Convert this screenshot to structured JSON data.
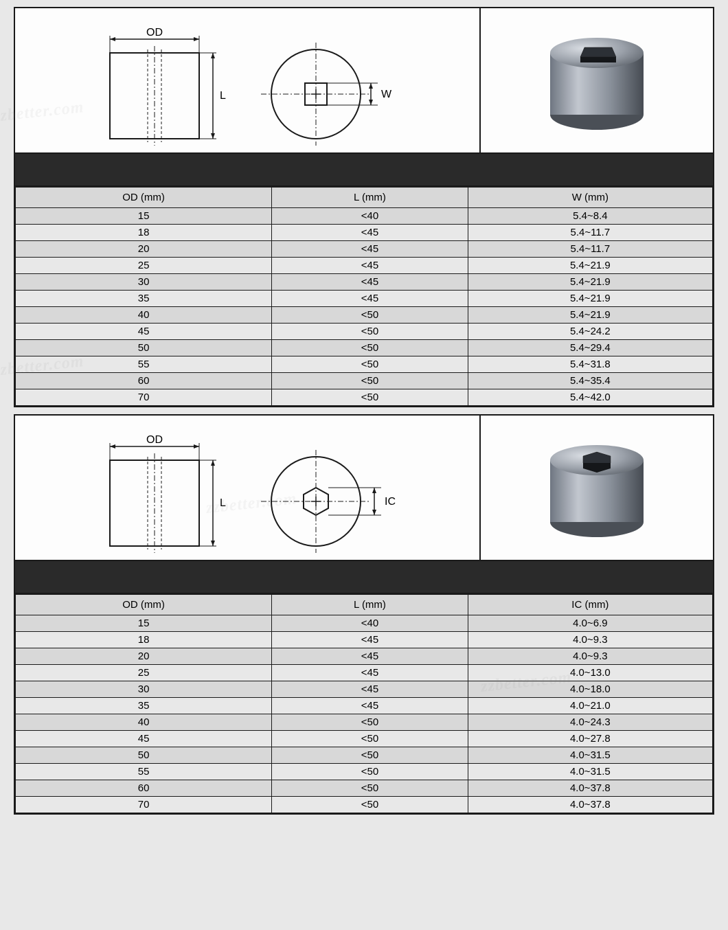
{
  "watermark_text": "zzbetter.com",
  "section1": {
    "shape_label_param": "W",
    "diagram": {
      "side_label_od": "OD",
      "side_label_l": "L",
      "top_label_w": "W",
      "line_color": "#1a1a1a",
      "fill_color": "#ffffff"
    },
    "render": {
      "body_color_light": "#b8bcc2",
      "body_color_dark": "#6f7681",
      "hole_shape": "square"
    },
    "table": {
      "headers": [
        "OD (mm)",
        "L (mm)",
        "W (mm)"
      ],
      "rows": [
        [
          "15",
          "<40",
          "5.4~8.4"
        ],
        [
          "18",
          "<45",
          "5.4~11.7"
        ],
        [
          "20",
          "<45",
          "5.4~11.7"
        ],
        [
          "25",
          "<45",
          "5.4~21.9"
        ],
        [
          "30",
          "<45",
          "5.4~21.9"
        ],
        [
          "35",
          "<45",
          "5.4~21.9"
        ],
        [
          "40",
          "<50",
          "5.4~21.9"
        ],
        [
          "45",
          "<50",
          "5.4~24.2"
        ],
        [
          "50",
          "<50",
          "5.4~29.4"
        ],
        [
          "55",
          "<50",
          "5.4~31.8"
        ],
        [
          "60",
          "<50",
          "5.4~35.4"
        ],
        [
          "70",
          "<50",
          "5.4~42.0"
        ]
      ]
    }
  },
  "section2": {
    "shape_label_param": "IC",
    "diagram": {
      "side_label_od": "OD",
      "side_label_l": "L",
      "top_label_ic": "IC",
      "line_color": "#1a1a1a",
      "fill_color": "#ffffff"
    },
    "render": {
      "body_color_light": "#b8bcc2",
      "body_color_dark": "#6f7681",
      "hole_shape": "hexagon"
    },
    "table": {
      "headers": [
        "OD (mm)",
        "L (mm)",
        "IC (mm)"
      ],
      "rows": [
        [
          "15",
          "<40",
          "4.0~6.9"
        ],
        [
          "18",
          "<45",
          "4.0~9.3"
        ],
        [
          "20",
          "<45",
          "4.0~9.3"
        ],
        [
          "25",
          "<45",
          "4.0~13.0"
        ],
        [
          "30",
          "<45",
          "4.0~18.0"
        ],
        [
          "35",
          "<45",
          "4.0~21.0"
        ],
        [
          "40",
          "<50",
          "4.0~24.3"
        ],
        [
          "45",
          "<50",
          "4.0~27.8"
        ],
        [
          "50",
          "<50",
          "4.0~31.5"
        ],
        [
          "55",
          "<50",
          "4.0~31.5"
        ],
        [
          "60",
          "<50",
          "4.0~37.8"
        ],
        [
          "70",
          "<50",
          "4.0~37.8"
        ]
      ]
    }
  },
  "styling": {
    "page_background": "#e8e8e8",
    "panel_background": "#fdfdfd",
    "darkbar_background": "#2a2a2a",
    "header_row_bg": "#d8d8d8",
    "odd_row_bg": "#d8d8d8",
    "even_row_bg": "#e8e8e8",
    "border_color": "#1a1a1a",
    "font_family": "Arial",
    "font_size_cell": 15,
    "font_size_label": 16
  }
}
